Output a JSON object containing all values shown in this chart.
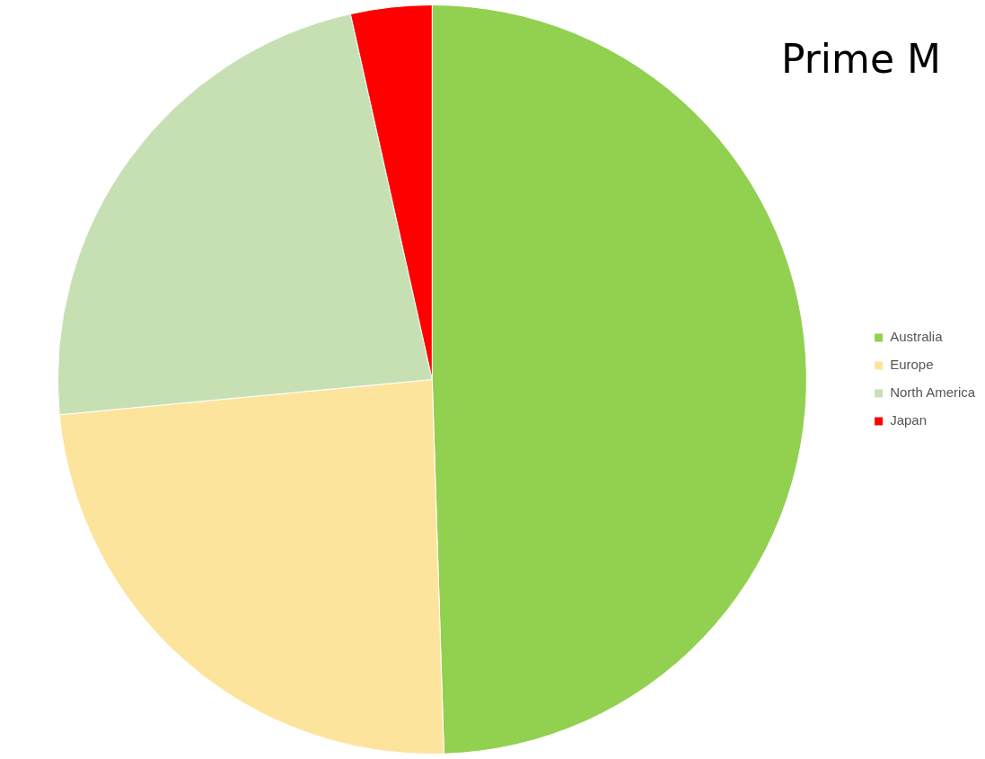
{
  "chart_data": {
    "type": "pie",
    "title": "Prime M",
    "categories": [
      "Australia",
      "Europe",
      "North America",
      "Japan"
    ],
    "values": [
      49.5,
      24,
      23,
      3.5
    ],
    "colors": [
      "#92d050",
      "#fde49c",
      "#c6e0b4",
      "#ff0000"
    ],
    "legend": "right"
  }
}
